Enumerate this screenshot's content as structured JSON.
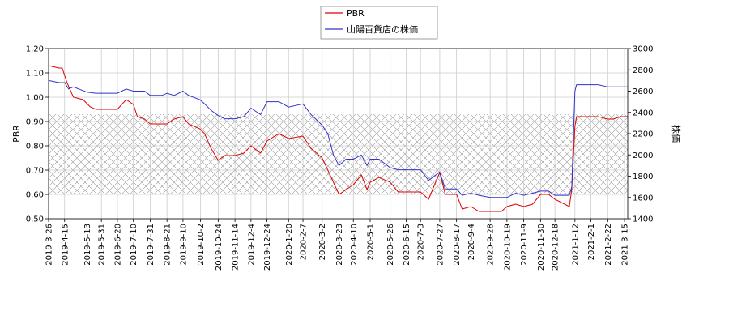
{
  "chart_data": {
    "type": "line",
    "title": "",
    "xlabel": "",
    "ylabel": "PBR",
    "y2label": "株価",
    "x_range": [
      "2019-03-26",
      "2021-03-19"
    ],
    "ylim": [
      0.5,
      1.2
    ],
    "y2lim": [
      1400,
      3000
    ],
    "y_ticks": [
      "0.50",
      "0.60",
      "0.70",
      "0.80",
      "0.90",
      "1.00",
      "1.10",
      "1.20"
    ],
    "y2_ticks": [
      "1400",
      "1600",
      "1800",
      "2000",
      "2200",
      "2400",
      "2600",
      "2800",
      "3000"
    ],
    "x_ticks": [
      "2019-3-26",
      "2019-4-15",
      "2019-5-13",
      "2019-5-31",
      "2019-6-20",
      "2019-7-10",
      "2019-7-31",
      "2019-8-21",
      "2019-9-10",
      "2019-10-2",
      "2019-10-24",
      "2019-11-14",
      "2019-12-4",
      "2019-12-24",
      "2020-1-20",
      "2020-2-7",
      "2020-3-2",
      "2020-3-23",
      "2020-4-10",
      "2020-5-1",
      "2020-5-26",
      "2020-6-15",
      "2020-7-3",
      "2020-7-27",
      "2020-8-17",
      "2020-9-4",
      "2020-9-28",
      "2020-10-19",
      "2020-11-9",
      "2020-11-30",
      "2020-12-18",
      "2021-1-12",
      "2021-2-1",
      "2021-2-22",
      "2021-3-15"
    ],
    "grid": true,
    "legend_position": "top-center",
    "shaded_band": {
      "ylim": [
        0.6,
        0.93
      ],
      "pattern": "crosshatch"
    },
    "series": [
      {
        "name": "PBR",
        "axis": "left",
        "color": "#dd0000",
        "x": [
          "2019-03-26",
          "2019-04-08",
          "2019-04-12",
          "2019-04-18",
          "2019-04-26",
          "2019-05-08",
          "2019-05-17",
          "2019-05-24",
          "2019-06-10",
          "2019-06-20",
          "2019-07-01",
          "2019-07-10",
          "2019-07-15",
          "2019-07-24",
          "2019-07-31",
          "2019-08-15",
          "2019-08-21",
          "2019-08-30",
          "2019-09-10",
          "2019-09-17",
          "2019-10-01",
          "2019-10-07",
          "2019-10-15",
          "2019-10-24",
          "2019-11-01",
          "2019-11-14",
          "2019-11-25",
          "2019-12-04",
          "2019-12-16",
          "2019-12-24",
          "2020-01-08",
          "2020-01-20",
          "2020-02-07",
          "2020-02-17",
          "2020-03-02",
          "2020-03-09",
          "2020-03-16",
          "2020-03-23",
          "2020-04-01",
          "2020-04-10",
          "2020-04-20",
          "2020-04-27",
          "2020-05-01",
          "2020-05-12",
          "2020-05-26",
          "2020-06-05",
          "2020-06-15",
          "2020-06-25",
          "2020-07-03",
          "2020-07-13",
          "2020-07-27",
          "2020-08-03",
          "2020-08-17",
          "2020-08-24",
          "2020-09-04",
          "2020-09-14",
          "2020-09-28",
          "2020-10-12",
          "2020-10-19",
          "2020-10-30",
          "2020-11-09",
          "2020-11-20",
          "2020-11-30",
          "2020-12-10",
          "2020-12-18",
          "2021-01-05",
          "2021-01-08",
          "2021-01-12",
          "2021-01-14",
          "2021-02-01",
          "2021-02-10",
          "2021-02-22",
          "2021-03-01",
          "2021-03-10",
          "2021-03-19"
        ],
        "y": [
          1.13,
          1.12,
          1.12,
          1.06,
          1.0,
          0.99,
          0.96,
          0.95,
          0.95,
          0.95,
          0.99,
          0.97,
          0.92,
          0.91,
          0.89,
          0.89,
          0.89,
          0.91,
          0.92,
          0.89,
          0.87,
          0.85,
          0.79,
          0.74,
          0.76,
          0.76,
          0.77,
          0.8,
          0.77,
          0.82,
          0.85,
          0.83,
          0.84,
          0.79,
          0.75,
          0.7,
          0.65,
          0.6,
          0.62,
          0.64,
          0.68,
          0.62,
          0.65,
          0.67,
          0.65,
          0.61,
          0.61,
          0.61,
          0.61,
          0.58,
          0.69,
          0.6,
          0.6,
          0.54,
          0.55,
          0.53,
          0.53,
          0.53,
          0.55,
          0.56,
          0.55,
          0.56,
          0.6,
          0.6,
          0.58,
          0.55,
          0.62,
          0.88,
          0.92,
          0.92,
          0.92,
          0.91,
          0.91,
          0.92,
          0.92
        ]
      },
      {
        "name": "山陽百貨店の株価",
        "axis": "right",
        "color": "#3333cc",
        "x": [
          "2019-03-26",
          "2019-04-08",
          "2019-04-15",
          "2019-04-20",
          "2019-04-26",
          "2019-05-13",
          "2019-05-24",
          "2019-06-10",
          "2019-06-20",
          "2019-07-01",
          "2019-07-10",
          "2019-07-24",
          "2019-07-31",
          "2019-08-15",
          "2019-08-21",
          "2019-08-30",
          "2019-09-10",
          "2019-09-17",
          "2019-10-01",
          "2019-10-07",
          "2019-10-15",
          "2019-10-24",
          "2019-11-01",
          "2019-11-14",
          "2019-11-25",
          "2019-12-04",
          "2019-12-16",
          "2019-12-24",
          "2020-01-08",
          "2020-01-20",
          "2020-02-07",
          "2020-02-17",
          "2020-03-02",
          "2020-03-09",
          "2020-03-16",
          "2020-03-23",
          "2020-04-01",
          "2020-04-10",
          "2020-04-20",
          "2020-04-27",
          "2020-05-01",
          "2020-05-12",
          "2020-05-26",
          "2020-06-05",
          "2020-06-15",
          "2020-06-25",
          "2020-07-03",
          "2020-07-13",
          "2020-07-27",
          "2020-08-03",
          "2020-08-17",
          "2020-08-24",
          "2020-09-04",
          "2020-09-14",
          "2020-09-28",
          "2020-10-12",
          "2020-10-19",
          "2020-10-30",
          "2020-11-09",
          "2020-11-20",
          "2020-11-30",
          "2020-12-10",
          "2020-12-18",
          "2021-01-05",
          "2021-01-08",
          "2021-01-12",
          "2021-01-14",
          "2021-02-01",
          "2021-02-10",
          "2021-02-22",
          "2021-03-01",
          "2021-03-10",
          "2021-03-19"
        ],
        "y": [
          2700,
          2680,
          2680,
          2620,
          2640,
          2590,
          2580,
          2580,
          2580,
          2620,
          2600,
          2600,
          2560,
          2560,
          2580,
          2560,
          2600,
          2560,
          2520,
          2480,
          2420,
          2370,
          2340,
          2340,
          2360,
          2440,
          2380,
          2500,
          2500,
          2450,
          2480,
          2380,
          2280,
          2200,
          2000,
          1900,
          1960,
          1960,
          2000,
          1900,
          1960,
          1960,
          1880,
          1860,
          1860,
          1860,
          1860,
          1760,
          1840,
          1680,
          1680,
          1620,
          1640,
          1620,
          1600,
          1600,
          1600,
          1640,
          1620,
          1640,
          1660,
          1660,
          1620,
          1620,
          1700,
          2600,
          2660,
          2660,
          2660,
          2640,
          2640,
          2640,
          2640
        ]
      }
    ]
  }
}
